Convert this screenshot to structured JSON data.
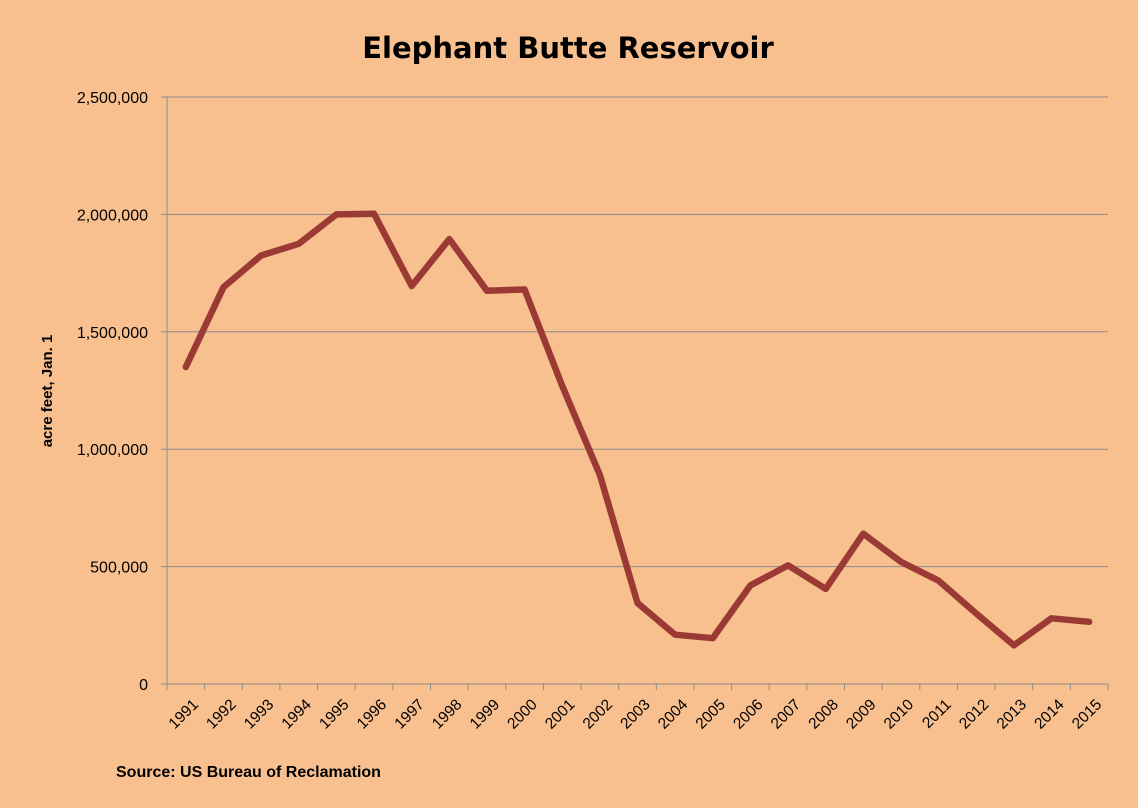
{
  "chart_data": {
    "type": "line",
    "title": "Elephant Butte Reservoir",
    "xlabel": "",
    "ylabel": "acre feet, Jan. 1",
    "source": "Source: US Bureau of Reclamation",
    "ylim": [
      0,
      2500000
    ],
    "y_ticks": [
      0,
      500000,
      1000000,
      1500000,
      2000000,
      2500000
    ],
    "y_tick_labels": [
      "0",
      "500,000",
      "1,000,000",
      "1,500,000",
      "2,000,000",
      "2,500,000"
    ],
    "grid": true,
    "legend": "none",
    "categories": [
      "1991",
      "1992",
      "1993",
      "1994",
      "1995",
      "1996",
      "1997",
      "1998",
      "1999",
      "2000",
      "2001",
      "2002",
      "2003",
      "2004",
      "2005",
      "2006",
      "2007",
      "2008",
      "2009",
      "2010",
      "2011",
      "2012",
      "2013",
      "2014",
      "2015"
    ],
    "series": [
      {
        "color": "#9b3a34",
        "values": [
          1350000,
          1690000,
          1825000,
          1875000,
          2000000,
          2003000,
          1695000,
          1895000,
          1675000,
          1680000,
          1270000,
          890000,
          345000,
          210000,
          195000,
          420000,
          505000,
          405000,
          640000,
          520000,
          440000,
          300000,
          165000,
          280000,
          265000
        ]
      }
    ]
  },
  "colors": {
    "background": "#f9c08f",
    "grid": "#8a8a8a",
    "line": "#9b3a34"
  }
}
